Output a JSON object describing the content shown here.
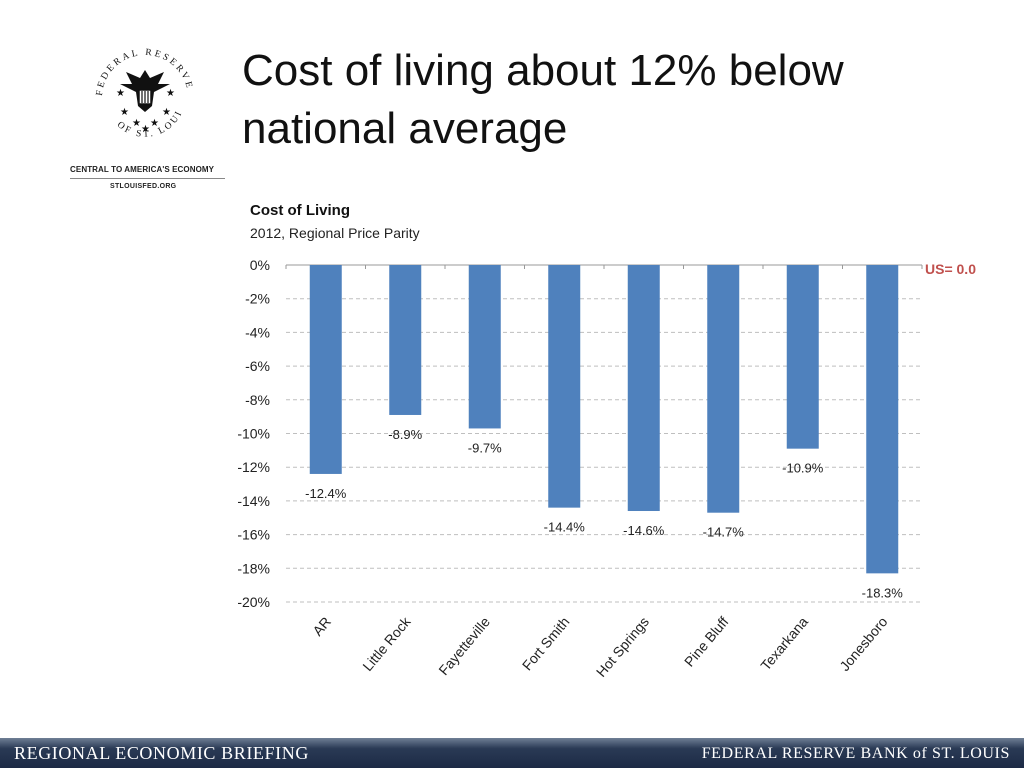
{
  "slide": {
    "title": "Cost of living about 12% below national average"
  },
  "branding": {
    "seal_text_top": "FEDERAL RESERVE BANK",
    "seal_text_bottom": "OF ST. LOUIS",
    "tagline": "CENTRAL TO AMERICA'S ECONOMY",
    "website": "STLOUISFED.ORG"
  },
  "footer": {
    "left": "REGIONAL ECONOMIC BRIEFING",
    "right": "FEDERAL RESERVE BANK of ST. LOUIS"
  },
  "chart_data": {
    "type": "bar",
    "title": "Cost of Living",
    "subtitle": "2012, Regional Price Parity",
    "categories": [
      "AR",
      "Little Rock",
      "Fayetteville",
      "Fort Smith",
      "Hot Springs",
      "Pine Bluff",
      "Texarkana",
      "Jonesboro"
    ],
    "values": [
      -12.4,
      -8.9,
      -9.7,
      -14.4,
      -14.6,
      -14.7,
      -10.9,
      -18.3
    ],
    "data_labels": [
      "-12.4%",
      "-8.9%",
      "-9.7%",
      "-14.4%",
      "-14.6%",
      "-14.7%",
      "-10.9%",
      "-18.3%"
    ],
    "ylim": [
      -20,
      0
    ],
    "yticks": [
      0,
      -2,
      -4,
      -6,
      -8,
      -10,
      -12,
      -14,
      -16,
      -18,
      -20
    ],
    "ytick_labels": [
      "0%",
      "-2%",
      "-4%",
      "-6%",
      "-8%",
      "-10%",
      "-12%",
      "-14%",
      "-16%",
      "-18%",
      "-20%"
    ],
    "grid": true,
    "annotation": "US= 0.0",
    "bar_color": "#4f81bd",
    "annotation_color": "#c0504d"
  }
}
